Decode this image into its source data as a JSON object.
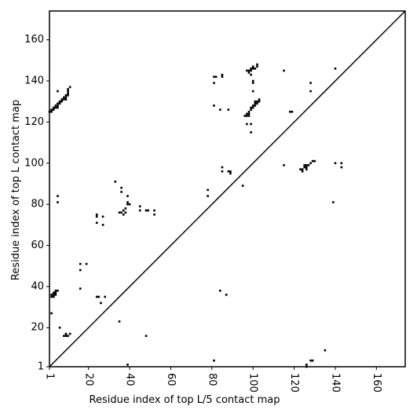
{
  "chart_data": {
    "type": "contact-map",
    "xlabel": "Residue index of top L/5 contact map",
    "ylabel": "Residue index of top L contact map",
    "xlim": [
      1,
      174
    ],
    "ylim": [
      1,
      174
    ],
    "xticks": [
      1,
      20,
      40,
      60,
      80,
      100,
      120,
      140,
      160
    ],
    "yticks": [
      1,
      20,
      40,
      60,
      80,
      100,
      120,
      140,
      160
    ],
    "color": "#000000",
    "x": [
      1,
      2,
      2,
      3,
      3,
      4,
      4,
      5,
      5,
      5,
      6,
      6,
      7,
      7,
      8,
      8,
      9,
      9,
      9,
      10,
      10,
      10,
      10,
      11,
      5,
      2,
      2,
      3,
      3,
      3,
      4,
      4,
      4,
      5,
      2,
      5,
      5,
      6,
      8,
      9,
      9,
      10,
      11,
      16,
      16,
      19,
      16,
      24,
      24,
      24,
      27,
      27,
      24,
      25,
      26,
      28,
      33,
      36,
      36,
      35,
      36,
      37,
      37,
      38,
      38,
      39,
      39,
      40,
      39,
      35,
      39,
      45,
      45,
      48,
      49,
      52,
      52,
      48,
      78,
      78,
      81,
      82,
      81,
      85,
      85,
      81,
      84,
      88,
      81,
      84,
      87,
      85,
      85,
      88,
      89,
      89,
      95,
      96,
      97,
      97,
      98,
      98,
      98,
      99,
      99,
      100,
      100,
      101,
      101,
      102,
      102,
      103,
      103,
      101,
      97,
      99,
      99,
      97,
      98,
      98,
      99,
      99,
      99,
      100,
      100,
      101,
      102,
      102,
      100,
      100,
      100,
      115,
      115,
      118,
      119,
      123,
      124,
      124,
      125,
      125,
      126,
      126,
      126,
      127,
      128,
      129,
      130,
      128,
      128,
      126,
      126,
      128,
      129,
      135,
      139,
      140,
      140,
      143,
      143
    ],
    "y": [
      125,
      125,
      126,
      126,
      127,
      127,
      128,
      127,
      128,
      129,
      129,
      130,
      130,
      131,
      131,
      132,
      131,
      132,
      133,
      133,
      134,
      135,
      136,
      137,
      135,
      35,
      36,
      35,
      36,
      37,
      36,
      37,
      38,
      38,
      27,
      84,
      81,
      20,
      16,
      16,
      17,
      16,
      17,
      51,
      48,
      51,
      39,
      75,
      74,
      71,
      74,
      70,
      35,
      35,
      32,
      35,
      91,
      88,
      86,
      76,
      76,
      75,
      77,
      76,
      78,
      80,
      81,
      80,
      84,
      23,
      2,
      79,
      77,
      77,
      77,
      77,
      75,
      16,
      87,
      84,
      142,
      142,
      139,
      143,
      142,
      128,
      126,
      126,
      4,
      38,
      36,
      98,
      96,
      96,
      96,
      95,
      89,
      123,
      123,
      124,
      123,
      124,
      125,
      126,
      127,
      127,
      128,
      128,
      129,
      129,
      130,
      130,
      131,
      130,
      119,
      119,
      115,
      145,
      145,
      144,
      146,
      145,
      143,
      147,
      146,
      146,
      147,
      148,
      140,
      139,
      135,
      145,
      99,
      125,
      125,
      97,
      97,
      96,
      98,
      99,
      98,
      97,
      99,
      99,
      100,
      101,
      101,
      139,
      135,
      2,
      1,
      4,
      4,
      9,
      81,
      146,
      100,
      100,
      98
    ]
  }
}
